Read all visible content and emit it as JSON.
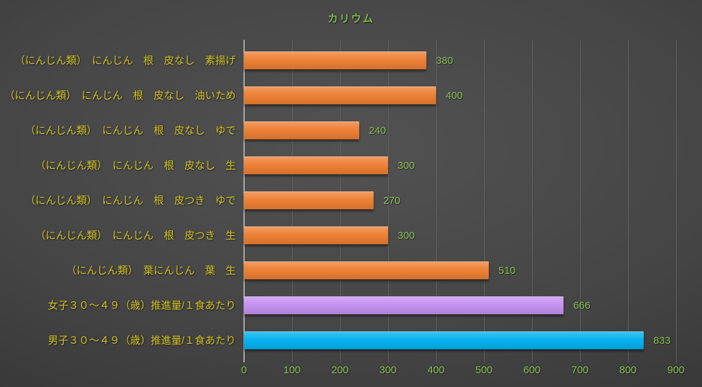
{
  "chart_data": {
    "type": "bar",
    "orientation": "horizontal",
    "title": "カリウム",
    "categories": [
      "（にんじん類）　にんじん　根　皮なし　素揚げ",
      "（にんじん類）　にんじん　根　皮なし　油いため",
      "（にんじん類）　にんじん　根　皮なし　ゆで",
      "（にんじん類）　にんじん　根　皮なし　生",
      "（にんじん類）　にんじん　根　皮つき　ゆで",
      "（にんじん類）　にんじん　根　皮つき　生",
      "（にんじん類）　葉にんじん　葉　生",
      "女子３０～４９（歳）推進量/１食あたり",
      "男子３０～４９（歳）推進量/１食あたり"
    ],
    "values": [
      380,
      400,
      240,
      300,
      270,
      300,
      510,
      666,
      833
    ],
    "value_labels": [
      "380",
      "400",
      "240",
      "300",
      "270",
      "300",
      "510",
      "666",
      "833"
    ],
    "bar_colors": [
      "#ED7D31",
      "#ED7D31",
      "#ED7D31",
      "#ED7D31",
      "#ED7D31",
      "#ED7D31",
      "#ED7D31",
      "#C490F0",
      "#00B0F0"
    ],
    "xlim": [
      0,
      900
    ],
    "x_ticks": [
      0,
      100,
      200,
      300,
      400,
      500,
      600,
      700,
      800,
      900
    ],
    "grid": true,
    "legend": "none",
    "xlabel": "",
    "ylabel": "",
    "colors": {
      "title": "#7ab84e",
      "category_label": "#cfc122",
      "value_label": "#8abf54",
      "tick_label": "#8abf54",
      "gridline": "#5f5f5f",
      "zero_line": "#a8a8a8",
      "bar_orange": "#ED7D31",
      "bar_purple": "#C490F0",
      "bar_blue": "#00B0F0",
      "background_center": "#4f4f4f",
      "background_edge": "#2b2b2b"
    }
  }
}
